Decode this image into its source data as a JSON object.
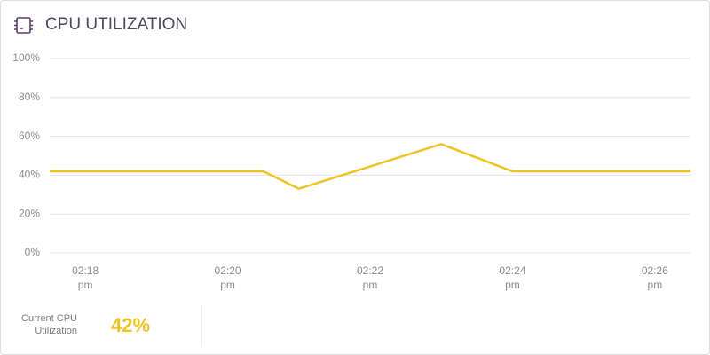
{
  "header": {
    "title": "CPU UTILIZATION"
  },
  "chart_data": {
    "type": "line",
    "categories": [
      null,
      "02:18 pm",
      null,
      null,
      null,
      "02:20 pm",
      null,
      null,
      null,
      "02:22 pm",
      null,
      null,
      null,
      "02:24 pm",
      null,
      null,
      null,
      "02:26 pm",
      null
    ],
    "series": [
      {
        "name": "CPU",
        "color": "#eec425",
        "values": [
          42,
          42,
          42,
          42,
          42,
          42,
          42,
          33,
          38.75,
          44.5,
          50.25,
          56,
          49,
          42,
          42,
          42,
          42,
          42,
          42
        ]
      }
    ],
    "ylim": [
      0,
      100
    ],
    "yticks": [
      {
        "value": 0,
        "label": "0%"
      },
      {
        "value": 20,
        "label": "20%"
      },
      {
        "value": 40,
        "label": "40%"
      },
      {
        "value": 60,
        "label": "60%"
      },
      {
        "value": 80,
        "label": "80%"
      },
      {
        "value": 100,
        "label": "100%"
      }
    ],
    "grid": true
  },
  "summary": {
    "label": "Current CPU Utilization",
    "value": "42%"
  }
}
